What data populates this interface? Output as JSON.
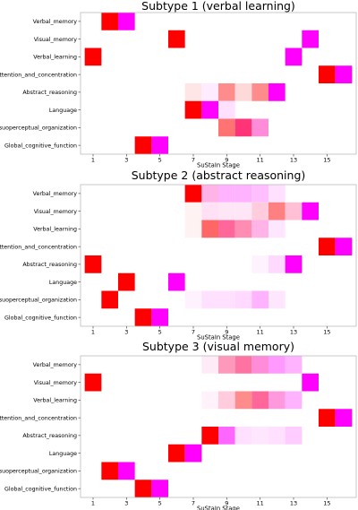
{
  "chart_data": [
    {
      "type": "heatmap",
      "title": "Subtype 1 (verbal learning)",
      "xlabel": "SuStaIn Stage",
      "x_ticks": [
        1,
        3,
        5,
        7,
        9,
        11,
        13,
        15
      ],
      "x_range": [
        1,
        16
      ],
      "rows": [
        "Verbal_memory",
        "Visual_memory",
        "Verbal_learning",
        "Attention_and_concentration",
        "Abstract_reasoning",
        "Language",
        "Visuoperceptual_organization",
        "Global_cognitive_function"
      ],
      "cells": [
        {
          "row": 0,
          "stage": 2,
          "value": 1.0,
          "color": "#ff0000"
        },
        {
          "row": 0,
          "stage": 3,
          "value": 1.0,
          "color": "#ff00ff"
        },
        {
          "row": 1,
          "stage": 6,
          "value": 1.0,
          "color": "#ff0000"
        },
        {
          "row": 1,
          "stage": 14,
          "value": 1.0,
          "color": "#ff00ff"
        },
        {
          "row": 2,
          "stage": 1,
          "value": 1.0,
          "color": "#ff0000"
        },
        {
          "row": 2,
          "stage": 13,
          "value": 1.0,
          "color": "#ff00ff"
        },
        {
          "row": 3,
          "stage": 15,
          "value": 1.0,
          "color": "#ff0000"
        },
        {
          "row": 3,
          "stage": 16,
          "value": 1.0,
          "color": "#ff00ff"
        },
        {
          "row": 4,
          "stage": 7,
          "value": 0.1,
          "color": "#ff0000"
        },
        {
          "row": 4,
          "stage": 8,
          "value": 0.08,
          "color": "#ff00ff"
        },
        {
          "row": 4,
          "stage": 9,
          "value": 0.45,
          "color": "#ff0000"
        },
        {
          "row": 4,
          "stage": 10,
          "value": 0.15,
          "color": "#ff0000"
        },
        {
          "row": 4,
          "stage": 11,
          "value": 0.45,
          "color": "#ff0000"
        },
        {
          "row": 4,
          "stage": 12,
          "value": 1.0,
          "color": "#ff00ff"
        },
        {
          "row": 5,
          "stage": 7,
          "value": 1.0,
          "color": "#ff0000"
        },
        {
          "row": 5,
          "stage": 8,
          "value": 1.0,
          "color": "#ff00ff"
        },
        {
          "row": 5,
          "stage": 9,
          "value": 0.12,
          "color": "#ff00ff"
        },
        {
          "row": 6,
          "stage": 9,
          "value": 0.55,
          "color": "#ff0000"
        },
        {
          "row": 6,
          "stage": 10,
          "value": 0.8,
          "color": "#ff0055"
        },
        {
          "row": 6,
          "stage": 11,
          "value": 0.45,
          "color": "#ff00aa"
        },
        {
          "row": 7,
          "stage": 4,
          "value": 1.0,
          "color": "#ff0000"
        },
        {
          "row": 7,
          "stage": 5,
          "value": 1.0,
          "color": "#ff00ff"
        }
      ]
    },
    {
      "type": "heatmap",
      "title": "Subtype 2 (abstract reasoning)",
      "xlabel": "SuStaIn Stage",
      "x_ticks": [
        1,
        3,
        5,
        7,
        9,
        11,
        13,
        15
      ],
      "x_range": [
        1,
        16
      ],
      "rows": [
        "Verbal_memory",
        "Visual_memory",
        "Verbal_learning",
        "Attention_and_concentration",
        "Abstract_reasoning",
        "Language",
        "Visuoperceptual_organization",
        "Global_cognitive_function"
      ],
      "cells": [
        {
          "row": 0,
          "stage": 7,
          "value": 1.0,
          "color": "#ff0000"
        },
        {
          "row": 0,
          "stage": 8,
          "value": 0.3,
          "color": "#ff00aa"
        },
        {
          "row": 0,
          "stage": 9,
          "value": 0.3,
          "color": "#ff00ff"
        },
        {
          "row": 0,
          "stage": 10,
          "value": 0.3,
          "color": "#ff00ff"
        },
        {
          "row": 0,
          "stage": 11,
          "value": 0.25,
          "color": "#ff00ff"
        },
        {
          "row": 0,
          "stage": 12,
          "value": 0.12,
          "color": "#ff00ff"
        },
        {
          "row": 1,
          "stage": 7,
          "value": 0.05,
          "color": "#ff0000"
        },
        {
          "row": 1,
          "stage": 8,
          "value": 0.12,
          "color": "#ff00aa"
        },
        {
          "row": 1,
          "stage": 9,
          "value": 0.1,
          "color": "#ff00aa"
        },
        {
          "row": 1,
          "stage": 10,
          "value": 0.1,
          "color": "#ff00aa"
        },
        {
          "row": 1,
          "stage": 11,
          "value": 0.2,
          "color": "#ff0055"
        },
        {
          "row": 1,
          "stage": 12,
          "value": 0.5,
          "color": "#ff0000"
        },
        {
          "row": 1,
          "stage": 13,
          "value": 0.25,
          "color": "#ff0055"
        },
        {
          "row": 1,
          "stage": 14,
          "value": 1.0,
          "color": "#ff00ff"
        },
        {
          "row": 2,
          "stage": 7,
          "value": 0.05,
          "color": "#ff0000"
        },
        {
          "row": 2,
          "stage": 8,
          "value": 0.6,
          "color": "#ff0000"
        },
        {
          "row": 2,
          "stage": 9,
          "value": 0.6,
          "color": "#ff0055"
        },
        {
          "row": 2,
          "stage": 10,
          "value": 0.45,
          "color": "#ff0055"
        },
        {
          "row": 2,
          "stage": 11,
          "value": 0.3,
          "color": "#ff00aa"
        },
        {
          "row": 2,
          "stage": 12,
          "value": 0.1,
          "color": "#ff00ff"
        },
        {
          "row": 3,
          "stage": 15,
          "value": 1.0,
          "color": "#ff0000"
        },
        {
          "row": 3,
          "stage": 16,
          "value": 1.0,
          "color": "#ff00ff"
        },
        {
          "row": 4,
          "stage": 1,
          "value": 1.0,
          "color": "#ff0000"
        },
        {
          "row": 4,
          "stage": 11,
          "value": 0.05,
          "color": "#ff00ff"
        },
        {
          "row": 4,
          "stage": 12,
          "value": 0.15,
          "color": "#ff00ff"
        },
        {
          "row": 4,
          "stage": 13,
          "value": 1.0,
          "color": "#ff00ff"
        },
        {
          "row": 5,
          "stage": 3,
          "value": 1.0,
          "color": "#ff0000"
        },
        {
          "row": 5,
          "stage": 6,
          "value": 1.0,
          "color": "#ff00ff"
        },
        {
          "row": 6,
          "stage": 2,
          "value": 1.0,
          "color": "#ff0000"
        },
        {
          "row": 6,
          "stage": 7,
          "value": 0.05,
          "color": "#ff00ff"
        },
        {
          "row": 6,
          "stage": 8,
          "value": 0.12,
          "color": "#ff00ff"
        },
        {
          "row": 6,
          "stage": 9,
          "value": 0.12,
          "color": "#ff00ff"
        },
        {
          "row": 6,
          "stage": 10,
          "value": 0.15,
          "color": "#ff00ff"
        },
        {
          "row": 6,
          "stage": 11,
          "value": 0.3,
          "color": "#ff00ff"
        },
        {
          "row": 6,
          "stage": 12,
          "value": 0.1,
          "color": "#ff00ff"
        },
        {
          "row": 7,
          "stage": 4,
          "value": 1.0,
          "color": "#ff0000"
        },
        {
          "row": 7,
          "stage": 5,
          "value": 1.0,
          "color": "#ff00ff"
        }
      ]
    },
    {
      "type": "heatmap",
      "title": "Subtype 3 (visual memory)",
      "xlabel": "SuStaIn Stage",
      "x_ticks": [
        1,
        3,
        5,
        7,
        9,
        11,
        13,
        15
      ],
      "x_range": [
        1,
        16
      ],
      "rows": [
        "Verbal_memory",
        "Visual_memory",
        "Verbal_learning",
        "Attention_and_concentration",
        "Abstract_reasoning",
        "Language",
        "Visuoperceptual_organization",
        "Global_cognitive_function"
      ],
      "cells": [
        {
          "row": 0,
          "stage": 8,
          "value": 0.08,
          "color": "#ff00aa"
        },
        {
          "row": 0,
          "stage": 9,
          "value": 0.4,
          "color": "#ff0055"
        },
        {
          "row": 0,
          "stage": 10,
          "value": 0.55,
          "color": "#ff0055"
        },
        {
          "row": 0,
          "stage": 11,
          "value": 0.45,
          "color": "#ff00aa"
        },
        {
          "row": 0,
          "stage": 12,
          "value": 0.4,
          "color": "#ff00ff"
        },
        {
          "row": 0,
          "stage": 13,
          "value": 0.3,
          "color": "#ff00ff"
        },
        {
          "row": 1,
          "stage": 1,
          "value": 1.0,
          "color": "#ff0000"
        },
        {
          "row": 1,
          "stage": 14,
          "value": 1.0,
          "color": "#ff00ff"
        },
        {
          "row": 2,
          "stage": 8,
          "value": 0.05,
          "color": "#ff00aa"
        },
        {
          "row": 2,
          "stage": 9,
          "value": 0.2,
          "color": "#ff0055"
        },
        {
          "row": 2,
          "stage": 10,
          "value": 0.45,
          "color": "#ff0000"
        },
        {
          "row": 2,
          "stage": 11,
          "value": 0.6,
          "color": "#ff0055"
        },
        {
          "row": 2,
          "stage": 12,
          "value": 0.4,
          "color": "#ff00aa"
        },
        {
          "row": 2,
          "stage": 13,
          "value": 0.3,
          "color": "#ff00ff"
        },
        {
          "row": 3,
          "stage": 15,
          "value": 1.0,
          "color": "#ff0000"
        },
        {
          "row": 3,
          "stage": 16,
          "value": 1.0,
          "color": "#ff00ff"
        },
        {
          "row": 4,
          "stage": 8,
          "value": 1.0,
          "color": "#ff0000"
        },
        {
          "row": 4,
          "stage": 9,
          "value": 0.6,
          "color": "#ff00ff"
        },
        {
          "row": 4,
          "stage": 10,
          "value": 0.12,
          "color": "#ff00ff"
        },
        {
          "row": 4,
          "stage": 11,
          "value": 0.1,
          "color": "#ff00ff"
        },
        {
          "row": 4,
          "stage": 12,
          "value": 0.12,
          "color": "#ff00ff"
        },
        {
          "row": 4,
          "stage": 13,
          "value": 0.2,
          "color": "#ff00ff"
        },
        {
          "row": 5,
          "stage": 6,
          "value": 1.0,
          "color": "#ff0000"
        },
        {
          "row": 5,
          "stage": 7,
          "value": 1.0,
          "color": "#ff00ff"
        },
        {
          "row": 6,
          "stage": 2,
          "value": 1.0,
          "color": "#ff0000"
        },
        {
          "row": 6,
          "stage": 3,
          "value": 1.0,
          "color": "#ff00ff"
        },
        {
          "row": 7,
          "stage": 4,
          "value": 1.0,
          "color": "#ff0000"
        },
        {
          "row": 7,
          "stage": 5,
          "value": 1.0,
          "color": "#ff00ff"
        }
      ]
    }
  ]
}
